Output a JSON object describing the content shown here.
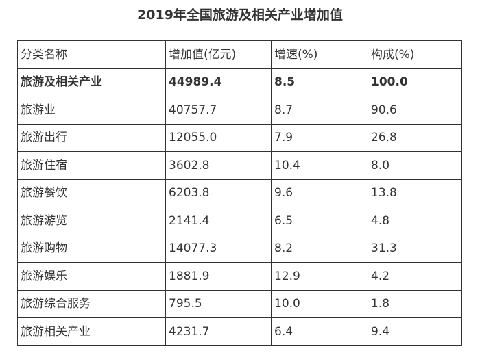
{
  "title": "2019年全国旅游及相关产业增加值",
  "table": {
    "headers": [
      "分类名称",
      "增加值(亿元)",
      "增速(%)",
      "构成(%)"
    ],
    "rows": [
      [
        "旅游及相关产业",
        "44989.4",
        "8.5",
        "100.0"
      ],
      [
        "旅游业",
        "40757.7",
        "8.7",
        "90.6"
      ],
      [
        "旅游出行",
        "12055.0",
        "7.9",
        "26.8"
      ],
      [
        "旅游住宿",
        "3602.8",
        "10.4",
        "8.0"
      ],
      [
        "旅游餐饮",
        "6203.8",
        "9.6",
        "13.8"
      ],
      [
        "旅游游览",
        "2141.4",
        "6.5",
        "4.8"
      ],
      [
        "旅游购物",
        "14077.3",
        "8.2",
        "31.3"
      ],
      [
        "旅游娱乐",
        "1881.9",
        "12.9",
        "4.2"
      ],
      [
        "旅游综合服务",
        "795.5",
        "10.0",
        "1.8"
      ],
      [
        "旅游相关产业",
        "4231.7",
        "6.4",
        "9.4"
      ]
    ]
  },
  "colors": {
    "text": "#333333",
    "border": "#333333",
    "background": "#ffffff"
  }
}
